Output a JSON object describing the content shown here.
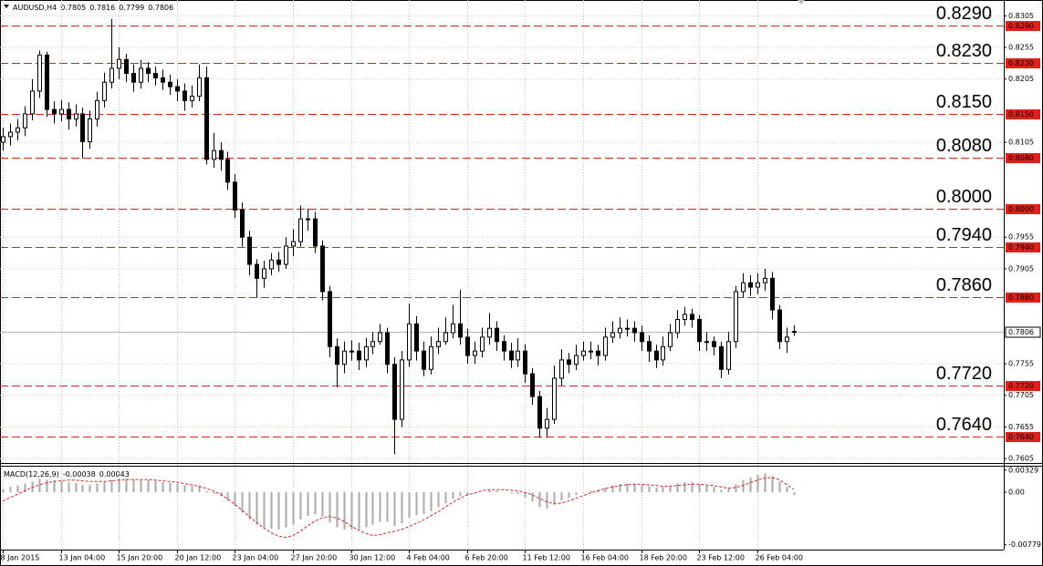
{
  "chart_data": [
    {
      "type": "candlestick",
      "title": "AUDUSD,H4",
      "categories": [
        "8 Jan 2015",
        null,
        null,
        null,
        null,
        null,
        null,
        null,
        "13 Jan 04:00",
        null,
        null,
        null,
        null,
        null,
        null,
        null,
        "15 Jan 20:00",
        null,
        null,
        null,
        null,
        null,
        null,
        null,
        "20 Jan 12:00",
        null,
        null,
        null,
        null,
        null,
        null,
        null,
        "23 Jan 04:00",
        null,
        null,
        null,
        null,
        null,
        null,
        null,
        "27 Jan 20:00",
        null,
        null,
        null,
        null,
        null,
        null,
        null,
        "30 Jan 12:00",
        null,
        null,
        null,
        null,
        null,
        null,
        null,
        "4 Feb 04:00",
        null,
        null,
        null,
        null,
        null,
        null,
        null,
        "6 Feb 20:00",
        null,
        null,
        null,
        null,
        null,
        null,
        null,
        "11 Feb 12:00",
        null,
        null,
        null,
        null,
        null,
        null,
        null,
        "16 Feb 04:00",
        null,
        null,
        null,
        null,
        null,
        null,
        null,
        "18 Feb 20:00",
        null,
        null,
        null,
        null,
        null,
        null,
        null,
        "23 Feb 12:00",
        null,
        null,
        null,
        null,
        null,
        null,
        null,
        "26 Feb 04:00",
        null,
        null,
        null,
        null,
        null
      ],
      "open": [
        0.8105,
        0.8114,
        0.8121,
        0.8128,
        0.815,
        0.8186,
        0.8243,
        0.8157,
        0.815,
        0.8157,
        0.8142,
        0.815,
        0.8106,
        0.8142,
        0.8171,
        0.82,
        0.8222,
        0.8236,
        0.8214,
        0.82,
        0.8222,
        0.8214,
        0.8207,
        0.82,
        0.8193,
        0.8186,
        0.8171,
        0.8178,
        0.8207,
        0.8078,
        0.8092,
        0.8078,
        0.8042,
        0.7998,
        0.7955,
        0.7912,
        0.789,
        0.7905,
        0.7919,
        0.7912,
        0.7941,
        0.7948,
        0.7984,
        0.7984,
        0.7941,
        0.7869,
        0.7782,
        0.7754,
        0.7775,
        0.7775,
        0.7761,
        0.7782,
        0.779,
        0.7804,
        0.7754,
        0.7667,
        0.7761,
        0.7818,
        0.7775,
        0.7746,
        0.7782,
        0.779,
        0.7804,
        0.7818,
        0.7797,
        0.7768,
        0.7775,
        0.7797,
        0.7811,
        0.779,
        0.7775,
        0.7761,
        0.7775,
        0.7739,
        0.7703,
        0.7653,
        0.7667,
        0.7732,
        0.7761,
        0.7754,
        0.7768,
        0.7775,
        0.7775,
        0.7768,
        0.7797,
        0.7804,
        0.7811,
        0.7811,
        0.7804,
        0.779,
        0.7775,
        0.7761,
        0.7782,
        0.7804,
        0.7825,
        0.7833,
        0.7825,
        0.779,
        0.779,
        0.7782,
        0.7746,
        0.779,
        0.7869,
        0.7883,
        0.7876,
        0.7883,
        0.789,
        0.784,
        0.779,
        0.7805
      ],
      "high": [
        0.8128,
        0.8135,
        0.8142,
        0.8162,
        0.8205,
        0.825,
        0.8248,
        0.817,
        0.8172,
        0.8168,
        0.8165,
        0.816,
        0.8155,
        0.8185,
        0.8215,
        0.83,
        0.8255,
        0.8245,
        0.8228,
        0.8235,
        0.8232,
        0.8225,
        0.822,
        0.8212,
        0.8205,
        0.8198,
        0.8195,
        0.8228,
        0.8225,
        0.812,
        0.8105,
        0.809,
        0.8055,
        0.801,
        0.7965,
        0.792,
        0.7918,
        0.793,
        0.7932,
        0.7955,
        0.7968,
        0.8005,
        0.8,
        0.7995,
        0.795,
        0.7878,
        0.7795,
        0.779,
        0.7792,
        0.7788,
        0.7796,
        0.7805,
        0.7818,
        0.7812,
        0.7765,
        0.7775,
        0.785,
        0.783,
        0.779,
        0.7798,
        0.7812,
        0.7828,
        0.7848,
        0.7872,
        0.781,
        0.779,
        0.7812,
        0.7835,
        0.7822,
        0.78,
        0.7788,
        0.7795,
        0.7786,
        0.7748,
        0.7712,
        0.7685,
        0.7752,
        0.7778,
        0.7772,
        0.7785,
        0.779,
        0.779,
        0.7785,
        0.7812,
        0.7822,
        0.7828,
        0.7825,
        0.7822,
        0.7815,
        0.78,
        0.7785,
        0.7798,
        0.7818,
        0.784,
        0.7845,
        0.7842,
        0.7832,
        0.7805,
        0.7798,
        0.779,
        0.7805,
        0.7878,
        0.7898,
        0.7895,
        0.7898,
        0.7905,
        0.79,
        0.7848,
        0.7812,
        0.7816
      ],
      "low": [
        0.8092,
        0.81,
        0.8108,
        0.8115,
        0.814,
        0.8175,
        0.8145,
        0.8135,
        0.8138,
        0.8125,
        0.813,
        0.808,
        0.8095,
        0.813,
        0.816,
        0.819,
        0.8205,
        0.82,
        0.8185,
        0.819,
        0.82,
        0.8195,
        0.8188,
        0.818,
        0.817,
        0.8155,
        0.816,
        0.817,
        0.807,
        0.8065,
        0.806,
        0.803,
        0.7985,
        0.794,
        0.7895,
        0.786,
        0.7875,
        0.7895,
        0.79,
        0.7905,
        0.7925,
        0.794,
        0.7965,
        0.793,
        0.7855,
        0.7765,
        0.7718,
        0.774,
        0.776,
        0.7745,
        0.775,
        0.777,
        0.7785,
        0.774,
        0.7612,
        0.7655,
        0.775,
        0.776,
        0.7735,
        0.7738,
        0.777,
        0.7785,
        0.7795,
        0.7785,
        0.7755,
        0.7755,
        0.7765,
        0.7785,
        0.7775,
        0.776,
        0.7748,
        0.775,
        0.7725,
        0.769,
        0.7638,
        0.764,
        0.766,
        0.772,
        0.774,
        0.7745,
        0.776,
        0.7762,
        0.7752,
        0.776,
        0.7788,
        0.7795,
        0.7798,
        0.779,
        0.7775,
        0.7758,
        0.7748,
        0.7752,
        0.7775,
        0.7795,
        0.7815,
        0.7812,
        0.7775,
        0.7775,
        0.7768,
        0.7732,
        0.7738,
        0.778,
        0.786,
        0.7862,
        0.7865,
        0.787,
        0.7825,
        0.7778,
        0.7772,
        0.7799
      ],
      "close": [
        0.8114,
        0.8121,
        0.8128,
        0.815,
        0.8186,
        0.8243,
        0.8157,
        0.815,
        0.8157,
        0.8142,
        0.815,
        0.8106,
        0.8142,
        0.8171,
        0.82,
        0.8222,
        0.8236,
        0.8214,
        0.82,
        0.8222,
        0.8214,
        0.8207,
        0.82,
        0.8193,
        0.8186,
        0.8171,
        0.8178,
        0.8207,
        0.8078,
        0.8092,
        0.8078,
        0.8042,
        0.7998,
        0.7955,
        0.7912,
        0.789,
        0.7905,
        0.7919,
        0.7912,
        0.7941,
        0.7948,
        0.7984,
        0.7984,
        0.7941,
        0.7869,
        0.7782,
        0.7754,
        0.7775,
        0.7775,
        0.7761,
        0.7782,
        0.779,
        0.7804,
        0.7754,
        0.7667,
        0.7761,
        0.7818,
        0.7775,
        0.7746,
        0.7782,
        0.779,
        0.7804,
        0.7818,
        0.7797,
        0.7768,
        0.7775,
        0.7797,
        0.7811,
        0.779,
        0.7775,
        0.7761,
        0.7775,
        0.7739,
        0.7703,
        0.7653,
        0.7667,
        0.7732,
        0.7761,
        0.7754,
        0.7768,
        0.7775,
        0.7775,
        0.7768,
        0.7797,
        0.7804,
        0.7811,
        0.7811,
        0.7804,
        0.779,
        0.7775,
        0.7761,
        0.7782,
        0.7804,
        0.7825,
        0.7833,
        0.7825,
        0.779,
        0.779,
        0.7782,
        0.7746,
        0.779,
        0.7869,
        0.7883,
        0.7876,
        0.7883,
        0.789,
        0.784,
        0.779,
        0.7797,
        0.7806
      ],
      "ylim": [
        0.7598,
        0.833
      ],
      "yticks": [
        0.8305,
        0.8255,
        0.8205,
        0.8105,
        0.7955,
        0.7905,
        0.7755,
        0.7705,
        0.7655,
        0.7605
      ],
      "levels": [
        {
          "value": 0.829,
          "label": "0.8290"
        },
        {
          "value": 0.823,
          "label": "0.8230"
        },
        {
          "value": 0.815,
          "label": "0.8150"
        },
        {
          "value": 0.808,
          "label": "0.8080"
        },
        {
          "value": 0.8,
          "label": "0.8000"
        },
        {
          "value": 0.794,
          "label": "0.7940"
        },
        {
          "value": 0.786,
          "label": "0.7860"
        },
        {
          "value": 0.772,
          "label": "0.7720"
        },
        {
          "value": 0.764,
          "label": "0.7640"
        }
      ],
      "bid": 0.7806,
      "grid": true,
      "up_color": "#ffffff",
      "down_color": "#000000",
      "wick_color": "#000000",
      "level_color": "#e0201b",
      "level_label_color": "#f26b21",
      "bid_color": "#b4b4b4",
      "grid_color": "#c8c8c8"
    },
    {
      "type": "macd",
      "title": "MACD(12,26,9)",
      "histogram": [
        0.0005,
        0.0008,
        0.001,
        0.0013,
        0.0016,
        0.002,
        0.0019,
        0.0018,
        0.0017,
        0.0015,
        0.0014,
        0.0011,
        0.0011,
        0.0013,
        0.0015,
        0.0018,
        0.002,
        0.002,
        0.0019,
        0.0019,
        0.0018,
        0.0017,
        0.0015,
        0.0014,
        0.0012,
        0.001,
        0.0009,
        0.001,
        0.0002,
        -0.0002,
        -0.0006,
        -0.0012,
        -0.002,
        -0.003,
        -0.004,
        -0.0048,
        -0.0052,
        -0.0054,
        -0.0055,
        -0.0052,
        -0.0048,
        -0.004,
        -0.0035,
        -0.0033,
        -0.0036,
        -0.0045,
        -0.0052,
        -0.0055,
        -0.0055,
        -0.0055,
        -0.0052,
        -0.0048,
        -0.0044,
        -0.0044,
        -0.005,
        -0.0046,
        -0.0038,
        -0.0034,
        -0.0032,
        -0.0028,
        -0.0022,
        -0.0016,
        -0.001,
        -0.0006,
        -0.0004,
        -0.0002,
        0.0,
        0.0003,
        0.0002,
        0.0,
        -0.0002,
        -0.0003,
        -0.0008,
        -0.0014,
        -0.0022,
        -0.0024,
        -0.0018,
        -0.0012,
        -0.0008,
        -0.0004,
        -0.0001,
        0.0002,
        0.0004,
        0.0007,
        0.001,
        0.0012,
        0.0013,
        0.0013,
        0.0011,
        0.0009,
        0.0007,
        0.0008,
        0.001,
        0.0013,
        0.0015,
        0.0015,
        0.0012,
        0.001,
        0.0008,
        0.0004,
        0.0005,
        0.0012,
        0.0018,
        0.0022,
        0.0026,
        0.0028,
        0.0024,
        0.0016,
        0.0008,
        -0.00038
      ],
      "signal": [
        -0.0013,
        -0.0008,
        -0.0003,
        0.0002,
        0.0007,
        0.0011,
        0.0014,
        0.0016,
        0.0017,
        0.0018,
        0.0018,
        0.0017,
        0.0016,
        0.0016,
        0.0016,
        0.0017,
        0.0018,
        0.0019,
        0.0019,
        0.0019,
        0.0019,
        0.0018,
        0.0017,
        0.0016,
        0.0015,
        0.0013,
        0.0011,
        0.0009,
        0.0006,
        0.0002,
        -0.0003,
        -0.001,
        -0.0018,
        -0.0027,
        -0.0036,
        -0.0045,
        -0.0053,
        -0.006,
        -0.0065,
        -0.0067,
        -0.0064,
        -0.0058,
        -0.005,
        -0.0043,
        -0.0038,
        -0.0036,
        -0.0038,
        -0.0043,
        -0.005,
        -0.0056,
        -0.0061,
        -0.0064,
        -0.0063,
        -0.006,
        -0.0058,
        -0.0055,
        -0.0051,
        -0.0046,
        -0.0041,
        -0.0035,
        -0.0029,
        -0.0022,
        -0.0015,
        -0.0009,
        -0.0004,
        -0.0001,
        0.0002,
        0.0004,
        0.0004,
        0.0004,
        0.0003,
        0.0002,
        0.0,
        -0.0004,
        -0.0009,
        -0.0014,
        -0.0017,
        -0.0016,
        -0.0013,
        -0.0009,
        -0.0005,
        -0.0001,
        0.0002,
        0.0005,
        0.0008,
        0.001,
        0.0011,
        0.0012,
        0.0012,
        0.0011,
        0.001,
        0.0009,
        0.0009,
        0.001,
        0.0011,
        0.0012,
        0.0012,
        0.0011,
        0.001,
        0.0008,
        0.0006,
        0.0007,
        0.001,
        0.0014,
        0.0018,
        0.0021,
        0.0022,
        0.0019,
        0.0012,
        0.00043
      ],
      "ylim": [
        -0.0085,
        0.0038
      ],
      "yticks": [
        0.00329,
        {
          "value": 0,
          "label": "0.00"
        },
        -0.00779
      ],
      "histogram_color": "#a9a9a9",
      "signal_color": "#e0201b"
    }
  ]
}
